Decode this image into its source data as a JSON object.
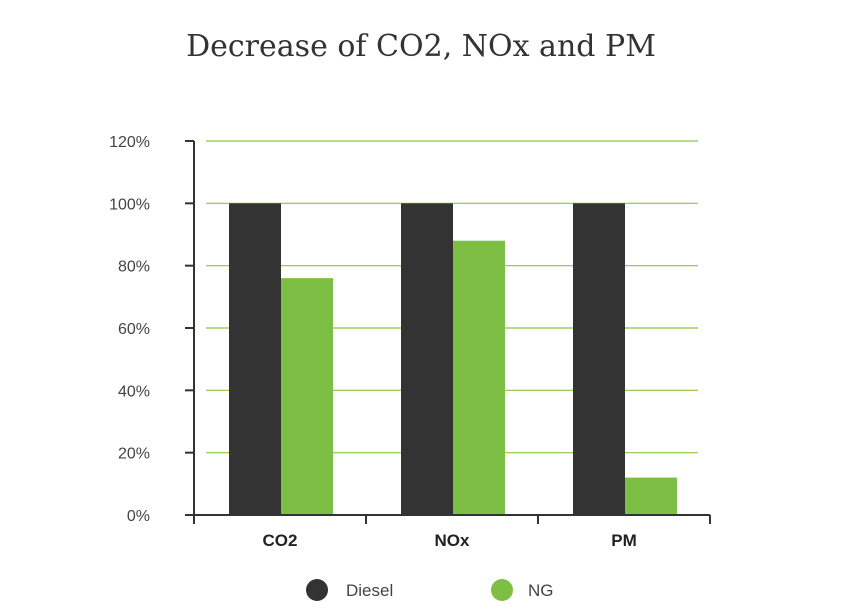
{
  "chart_data": {
    "type": "bar",
    "title": "Decrease of CO2, NOx and PM",
    "categories": [
      "CO2",
      "NOx",
      "PM"
    ],
    "series": [
      {
        "name": "Diesel",
        "values": [
          100,
          100,
          100
        ],
        "color": "#333333"
      },
      {
        "name": "NG",
        "values": [
          76,
          88,
          12
        ],
        "color": "#7dbf45"
      }
    ],
    "y_ticks": [
      "0%",
      "20%",
      "40%",
      "60%",
      "80%",
      "100%",
      "120%"
    ],
    "ylim": [
      0,
      120
    ],
    "xlabel": "",
    "ylabel": "",
    "grid": true,
    "gridline_color": "#8cc63f",
    "axis_color": "#333333",
    "legend_position": "bottom"
  }
}
